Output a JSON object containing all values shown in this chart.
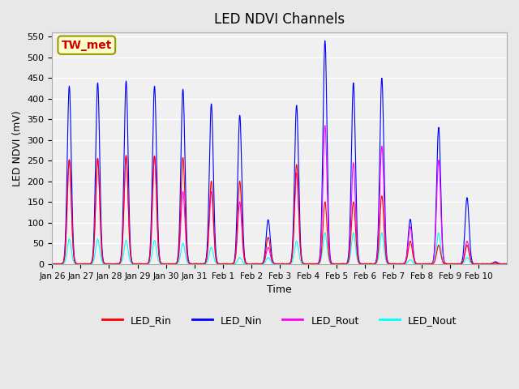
{
  "title": "LED NDVI Channels",
  "xlabel": "Time",
  "ylabel": "LED NDVI (mV)",
  "ylim": [
    0,
    560
  ],
  "yticks": [
    0,
    50,
    100,
    150,
    200,
    250,
    300,
    350,
    400,
    450,
    500,
    550
  ],
  "annotation_text": "TW_met",
  "annotation_color": "#cc0000",
  "annotation_bg": "#ffffcc",
  "annotation_border": "#999900",
  "colors": {
    "LED_Rin": "#ff0000",
    "LED_Nin": "#0000ff",
    "LED_Rout": "#ff00ff",
    "LED_Nout": "#00ffff"
  },
  "background_color": "#e8e8e8",
  "plot_bg": "#f0f0f0",
  "grid_color": "#ffffff",
  "tick_labels": [
    "Jan 26",
    "Jan 27",
    "Jan 28",
    "Jan 29",
    "Jan 30",
    "Jan 31",
    "Feb 1",
    "Feb 2",
    "Feb 3",
    "Feb 4",
    "Feb 5",
    "Feb 6",
    "Feb 7",
    "Feb 8",
    "Feb 9",
    "Feb 10"
  ],
  "legend_entries": [
    "LED_Rin",
    "LED_Nin",
    "LED_Rout",
    "LED_Nout"
  ],
  "daily_peaks": {
    "Jan 26": {
      "Nin": 430,
      "Rin": 252,
      "Rout": 252,
      "Nout": 60
    },
    "Jan 27": {
      "Nin": 438,
      "Rin": 255,
      "Rout": 255,
      "Nout": 60
    },
    "Jan 28": {
      "Nin": 442,
      "Rin": 262,
      "Rout": 260,
      "Nout": 57
    },
    "Jan 29": {
      "Nin": 430,
      "Rin": 262,
      "Rout": 260,
      "Nout": 57
    },
    "Jan 30": {
      "Nin": 423,
      "Rin": 258,
      "Rout": 175,
      "Nout": 50
    },
    "Jan 31": {
      "Nin": 387,
      "Rin": 200,
      "Rout": 175,
      "Nout": 40
    },
    "Feb 1": {
      "Nin": 360,
      "Rin": 200,
      "Rout": 150,
      "Nout": 15
    },
    "Feb 2": {
      "Nin": 107,
      "Rin": 65,
      "Rout": 40,
      "Nout": 15
    },
    "Feb 3": {
      "Nin": 384,
      "Rin": 240,
      "Rout": 220,
      "Nout": 55
    },
    "Feb 4": {
      "Nin": 540,
      "Rin": 150,
      "Rout": 335,
      "Nout": 75
    },
    "Feb 5": {
      "Nin": 438,
      "Rin": 150,
      "Rout": 245,
      "Nout": 75
    },
    "Feb 6": {
      "Nin": 450,
      "Rin": 165,
      "Rout": 285,
      "Nout": 75
    },
    "Feb 7": {
      "Nin": 108,
      "Rin": 55,
      "Rout": 90,
      "Nout": 10
    },
    "Feb 8": {
      "Nin": 330,
      "Rin": 45,
      "Rout": 250,
      "Nout": 75
    },
    "Feb 9": {
      "Nin": 160,
      "Rin": 45,
      "Rout": 55,
      "Nout": 15
    },
    "Feb 10": {
      "Nin": 5,
      "Rin": 2,
      "Rout": 3,
      "Nout": 2
    }
  }
}
